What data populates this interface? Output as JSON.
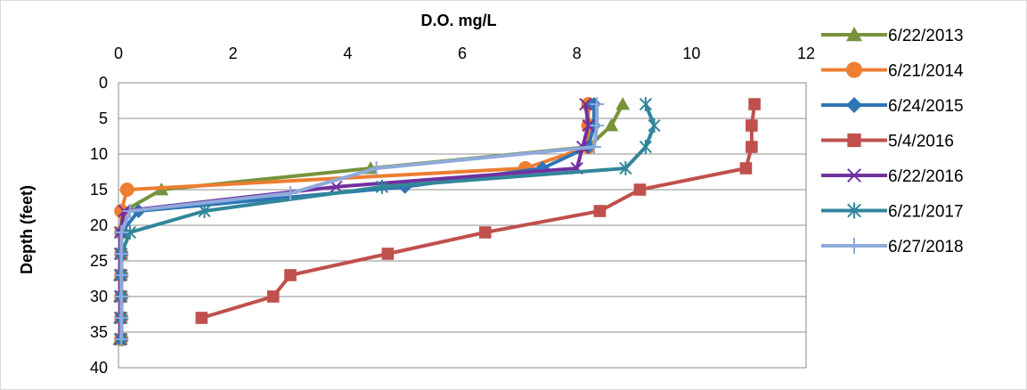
{
  "chart_data": {
    "type": "line",
    "title": "",
    "xlabel": "D.O. mg/L",
    "ylabel": "Depth (feet)",
    "x_axis_position": "top",
    "y_axis_reversed": true,
    "xlim": [
      0,
      12
    ],
    "ylim": [
      0,
      40
    ],
    "xticks": [
      0,
      2,
      4,
      6,
      8,
      10,
      12
    ],
    "yticks": [
      0,
      5,
      10,
      15,
      20,
      25,
      30,
      35,
      40
    ],
    "grid": "horizontal",
    "legend_position": "right",
    "series": [
      {
        "name": "6/22/2013",
        "color": "#77933c",
        "marker": "triangle",
        "points": [
          [
            8.8,
            3
          ],
          [
            8.6,
            6
          ],
          [
            8.2,
            9
          ],
          [
            4.4,
            12
          ],
          [
            0.75,
            15
          ],
          [
            0.1,
            18
          ],
          [
            0.05,
            21
          ],
          [
            0.05,
            24
          ],
          [
            0.03,
            27
          ],
          [
            0.03,
            30
          ],
          [
            0.03,
            33
          ],
          [
            0.02,
            36
          ]
        ]
      },
      {
        "name": "6/21/2014",
        "color": "#ed7d31",
        "marker": "circle",
        "points": [
          [
            8.2,
            3
          ],
          [
            8.2,
            6
          ],
          [
            8.2,
            9
          ],
          [
            7.1,
            12
          ],
          [
            0.15,
            15
          ],
          [
            0.05,
            18
          ],
          [
            0.05,
            21
          ],
          [
            0.05,
            24
          ],
          [
            0.05,
            27
          ],
          [
            0.05,
            30
          ],
          [
            0.05,
            33
          ],
          [
            0.05,
            36
          ]
        ]
      },
      {
        "name": "6/24/2015",
        "color": "#2e75b6",
        "marker": "diamond",
        "points": [
          [
            8.3,
            3
          ],
          [
            8.3,
            6
          ],
          [
            8.2,
            9
          ],
          [
            7.4,
            12
          ],
          [
            5.0,
            14.6
          ],
          [
            0.35,
            18
          ],
          [
            0.05,
            21
          ],
          [
            0.05,
            24
          ],
          [
            0.05,
            27
          ],
          [
            0.05,
            30
          ],
          [
            0.05,
            33
          ],
          [
            0.05,
            36
          ]
        ]
      },
      {
        "name": "5/4/2016",
        "color": "#c0504d",
        "marker": "square",
        "points": [
          [
            11.1,
            3
          ],
          [
            11.05,
            6
          ],
          [
            11.05,
            9
          ],
          [
            10.95,
            12
          ],
          [
            9.1,
            15
          ],
          [
            8.4,
            18
          ],
          [
            6.4,
            21
          ],
          [
            4.7,
            24
          ],
          [
            3.0,
            27
          ],
          [
            2.7,
            30
          ],
          [
            1.45,
            33
          ]
        ]
      },
      {
        "name": "6/22/2016",
        "color": "#7030a0",
        "marker": "x",
        "points": [
          [
            8.15,
            3
          ],
          [
            8.2,
            6
          ],
          [
            8.1,
            9
          ],
          [
            8.0,
            12
          ],
          [
            3.8,
            14.6
          ],
          [
            0.1,
            18
          ],
          [
            0.03,
            21
          ],
          [
            0.03,
            24
          ],
          [
            0.03,
            27
          ],
          [
            0.03,
            30
          ],
          [
            0.03,
            33
          ],
          [
            0.03,
            36
          ]
        ]
      },
      {
        "name": "6/21/2017",
        "color": "#31869b",
        "marker": "asterisk",
        "points": [
          [
            9.2,
            3
          ],
          [
            9.35,
            6
          ],
          [
            9.2,
            9
          ],
          [
            8.85,
            12
          ],
          [
            4.6,
            14.6
          ],
          [
            1.5,
            18
          ],
          [
            0.2,
            21
          ],
          [
            0.05,
            24
          ],
          [
            0.05,
            27
          ],
          [
            0.05,
            30
          ],
          [
            0.05,
            33
          ],
          [
            0.05,
            36
          ]
        ]
      },
      {
        "name": "6/27/2018",
        "color": "#8eaadb",
        "marker": "plus",
        "points": [
          [
            8.35,
            3
          ],
          [
            8.35,
            6
          ],
          [
            8.3,
            9
          ],
          [
            4.5,
            12
          ],
          [
            3.0,
            15.5
          ],
          [
            0.2,
            18
          ],
          [
            0.05,
            21
          ],
          [
            0.05,
            24
          ],
          [
            0.05,
            27
          ],
          [
            0.05,
            30
          ],
          [
            0.05,
            33
          ],
          [
            0.05,
            36
          ]
        ]
      }
    ]
  }
}
